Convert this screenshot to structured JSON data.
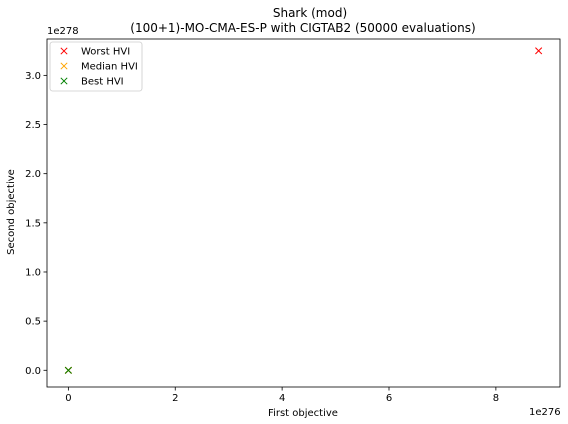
{
  "chart_data": {
    "type": "scatter",
    "title_line1": "Shark (mod)",
    "title_line2": "(100+1)-MO-CMA-ES-P with CIGTAB2 (50000 evaluations)",
    "xlabel": "First objective",
    "ylabel": "Second objective",
    "x_offset_label": "1e276",
    "y_offset_label": "1e278",
    "xlim": [
      -0.4,
      9.2
    ],
    "ylim": [
      -0.17,
      3.37
    ],
    "xticks": [
      0,
      2,
      4,
      6,
      8
    ],
    "yticks": [
      0.0,
      0.5,
      1.0,
      1.5,
      2.0,
      2.5,
      3.0
    ],
    "xtick_labels": [
      "0",
      "2",
      "4",
      "6",
      "8"
    ],
    "ytick_labels": [
      "0.0",
      "0.5",
      "1.0",
      "1.5",
      "2.0",
      "2.5",
      "3.0"
    ],
    "legend_position": "upper-left",
    "series": [
      {
        "name": "Worst HVI",
        "color": "#ff0000",
        "marker": "x",
        "points": [
          [
            8.8,
            3.25
          ],
          [
            0.0,
            0.0
          ]
        ]
      },
      {
        "name": "Median HVI",
        "color": "#ffa500",
        "marker": "x",
        "points": [
          [
            0.0,
            0.0
          ]
        ]
      },
      {
        "name": "Best HVI",
        "color": "#008000",
        "marker": "x",
        "points": [
          [
            0.0,
            0.0
          ]
        ]
      }
    ]
  }
}
